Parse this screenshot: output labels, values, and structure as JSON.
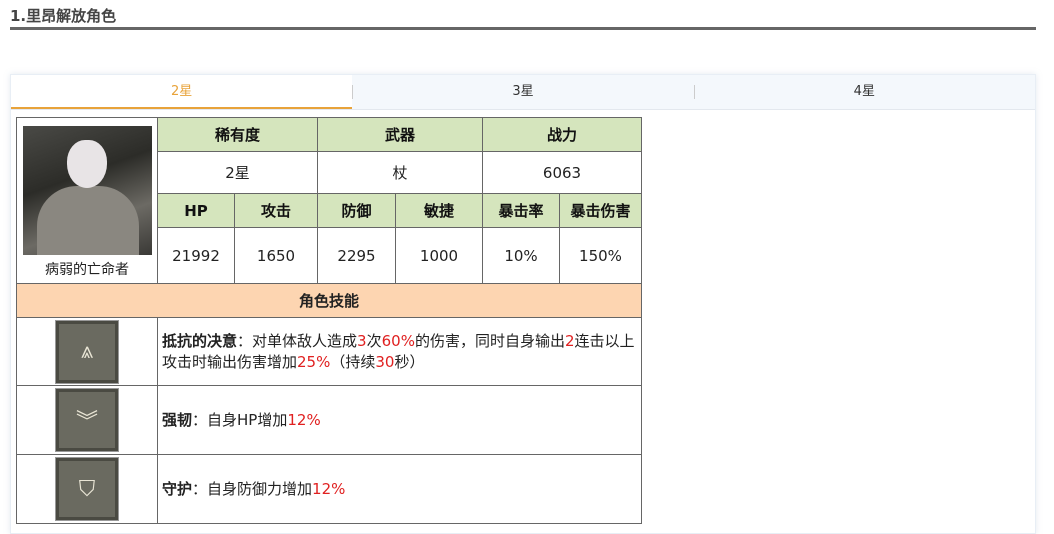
{
  "title": "1.里昂解放角色",
  "tabs": [
    "2星",
    "3星",
    "4星"
  ],
  "character": {
    "name": "病弱的亡命者"
  },
  "headers1": [
    "稀有度",
    "武器",
    "战力"
  ],
  "values1": [
    "2星",
    "杖",
    "6063"
  ],
  "headers2": [
    "HP",
    "攻击",
    "防御",
    "敏捷",
    "暴击率",
    "暴击伤害"
  ],
  "values2": [
    "21992",
    "1650",
    "2295",
    "1000",
    "10%",
    "150%"
  ],
  "skills_header": "角色技能",
  "skills": [
    {
      "icon": "skill-resolve-icon",
      "name": "抵抗的决意",
      "sep": "：",
      "parts": [
        "对单体敌人造成",
        "3",
        "次",
        "60%",
        "的伤害，同时自身输出",
        "2",
        "连击以上攻击时输出伤害增加",
        "25%",
        "（持续",
        "30",
        "秒）"
      ]
    },
    {
      "icon": "chevron-double-down-icon",
      "name": "强韧",
      "sep": "：",
      "parts": [
        "自身HP增加",
        "12%"
      ]
    },
    {
      "icon": "shield-icon",
      "name": "守护",
      "sep": "：",
      "parts": [
        "自身防御力增加",
        "12%"
      ]
    }
  ],
  "colors": {
    "accent": "#e8a33a",
    "header_green": "#d5e5bd",
    "header_orange": "#fdd5b1",
    "highlight": "#e02020"
  }
}
